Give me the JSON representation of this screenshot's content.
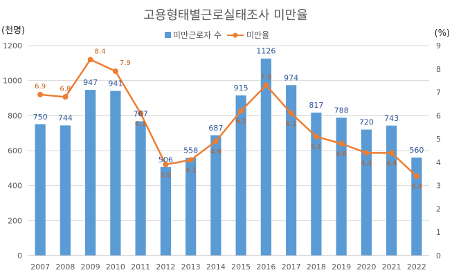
{
  "chart_data": {
    "type": "bar",
    "title": "고용형태별근로실태조사  미만율",
    "left_unit": "(천명)",
    "right_unit": "(%)",
    "categories": [
      "2007",
      "2008",
      "2009",
      "2010",
      "2011",
      "2012",
      "2013",
      "2014",
      "2015",
      "2016",
      "2017",
      "2018",
      "2019",
      "2020",
      "2021",
      "2022"
    ],
    "legend": {
      "placement": "top-center",
      "bar_label": "미만근로자 수",
      "line_label": "미만율"
    },
    "series": [
      {
        "name": "미만근로자 수",
        "type": "bar",
        "axis": "left",
        "color": "#5B9BD5",
        "label_color": "#2F5597",
        "values": [
          750,
          744,
          947,
          941,
          767,
          506,
          558,
          687,
          915,
          1126,
          974,
          817,
          788,
          720,
          743,
          560
        ]
      },
      {
        "name": "미만율",
        "type": "line",
        "axis": "right",
        "color": "#ED7D31",
        "label_color": "#C55A11",
        "values": [
          6.9,
          6.8,
          8.4,
          7.9,
          6.1,
          3.9,
          4.1,
          4.9,
          6.2,
          7.3,
          6.1,
          5.1,
          4.8,
          4.4,
          4.4,
          3.4
        ]
      }
    ],
    "y_left": {
      "min": 0,
      "max": 1200,
      "ticks": [
        "0",
        "200",
        "400",
        "600",
        "800",
        "1000",
        "1200"
      ]
    },
    "y_right": {
      "min": 0,
      "max": 9,
      "ticks": [
        "0",
        "1",
        "2",
        "3",
        "4",
        "5",
        "6",
        "7",
        "8",
        "9"
      ]
    },
    "grid": true
  }
}
